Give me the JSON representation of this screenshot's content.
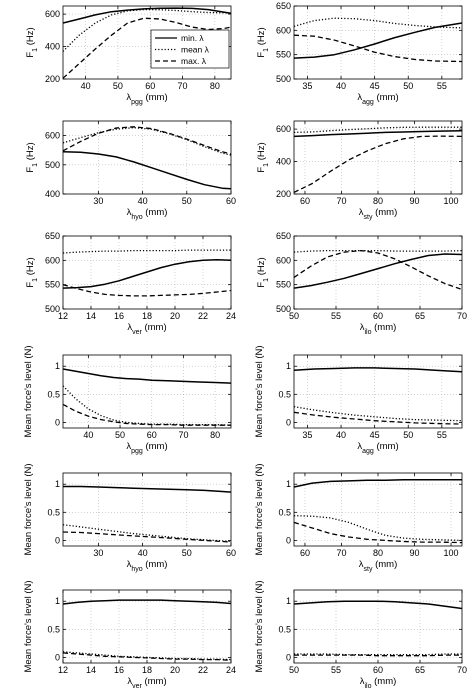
{
  "legend": [
    {
      "label": "min. λ",
      "style": "solid"
    },
    {
      "label": "mean λ",
      "style": "dotted"
    },
    {
      "label": "max. λ",
      "style": "dashed"
    }
  ],
  "chart_data": [
    {
      "type": "line",
      "xlabel": "λpgg (mm)",
      "ylabel": "F1 (Hz)",
      "xlim": [
        33,
        85
      ],
      "ylim": [
        200,
        650
      ],
      "xticks": [
        40,
        50,
        60,
        70,
        80
      ],
      "yticks": [
        200,
        400,
        600
      ],
      "grid": true,
      "legend": "top-right",
      "x": [
        33,
        38,
        43,
        48,
        53,
        58,
        63,
        68,
        73,
        78,
        83,
        85
      ],
      "series": [
        {
          "name": "min. λ",
          "values": [
            545,
            570,
            595,
            615,
            625,
            632,
            636,
            637,
            635,
            628,
            612,
            605
          ]
        },
        {
          "name": "mean λ",
          "values": [
            370,
            470,
            545,
            595,
            620,
            628,
            627,
            622,
            615,
            610,
            608,
            605
          ]
        },
        {
          "name": "max. λ",
          "values": [
            205,
            295,
            385,
            470,
            545,
            575,
            570,
            548,
            520,
            505,
            512,
            520
          ]
        }
      ]
    },
    {
      "type": "line",
      "xlabel": "λagg (mm)",
      "ylabel": "F1 (Hz)",
      "xlim": [
        33,
        58
      ],
      "ylim": [
        500,
        650
      ],
      "xticks": [
        35,
        40,
        45,
        50,
        55
      ],
      "yticks": [
        500,
        550,
        600,
        650
      ],
      "grid": true,
      "x": [
        33,
        36,
        39,
        42,
        45,
        48,
        51,
        54,
        58
      ],
      "series": [
        {
          "name": "min. λ",
          "values": [
            543,
            545,
            550,
            560,
            572,
            585,
            596,
            606,
            615
          ]
        },
        {
          "name": "mean λ",
          "values": [
            608,
            620,
            625,
            624,
            620,
            614,
            610,
            607,
            605
          ]
        },
        {
          "name": "max. λ",
          "values": [
            590,
            588,
            580,
            568,
            555,
            546,
            540,
            537,
            536
          ]
        }
      ]
    },
    {
      "type": "line",
      "xlabel": "λhyo (mm)",
      "ylabel": "F1 (Hz)",
      "xlim": [
        22,
        60
      ],
      "ylim": [
        400,
        650
      ],
      "xticks": [
        30,
        40,
        50,
        60
      ],
      "yticks": [
        400,
        500,
        600
      ],
      "grid": true,
      "x": [
        22,
        26,
        30,
        34,
        38,
        42,
        46,
        50,
        54,
        58,
        60
      ],
      "series": [
        {
          "name": "min. λ",
          "values": [
            545,
            543,
            537,
            527,
            510,
            490,
            470,
            450,
            432,
            420,
            418
          ]
        },
        {
          "name": "mean λ",
          "values": [
            575,
            593,
            610,
            622,
            627,
            622,
            606,
            586,
            562,
            540,
            533
          ]
        },
        {
          "name": "max. λ",
          "values": [
            548,
            580,
            608,
            626,
            630,
            624,
            608,
            588,
            566,
            545,
            537
          ]
        }
      ]
    },
    {
      "type": "line",
      "xlabel": "λsty (mm)",
      "ylabel": "F1 (Hz)",
      "xlim": [
        57,
        103
      ],
      "ylim": [
        200,
        650
      ],
      "xticks": [
        60,
        70,
        80,
        90,
        100
      ],
      "yticks": [
        200,
        400,
        600
      ],
      "grid": true,
      "x": [
        57,
        62,
        67,
        72,
        77,
        82,
        87,
        92,
        97,
        103
      ],
      "series": [
        {
          "name": "min. λ",
          "values": [
            555,
            560,
            566,
            570,
            575,
            580,
            582,
            585,
            588,
            590
          ]
        },
        {
          "name": "mean λ",
          "values": [
            580,
            583,
            590,
            597,
            602,
            608,
            611,
            612,
            612,
            612
          ]
        },
        {
          "name": "max. λ",
          "values": [
            210,
            265,
            340,
            410,
            465,
            510,
            540,
            555,
            557,
            555
          ]
        }
      ]
    },
    {
      "type": "line",
      "xlabel": "λver (mm)",
      "ylabel": "F1 (Hz)",
      "xlim": [
        12,
        24
      ],
      "ylim": [
        500,
        650
      ],
      "xticks": [
        12,
        14,
        16,
        18,
        20,
        22,
        24
      ],
      "yticks": [
        500,
        550,
        600,
        650
      ],
      "grid": true,
      "x": [
        12,
        13,
        14,
        15,
        16,
        17,
        18,
        19,
        20,
        21,
        22,
        23,
        24
      ],
      "series": [
        {
          "name": "min. λ",
          "values": [
            543,
            544,
            546,
            551,
            558,
            567,
            576,
            585,
            592,
            597,
            600,
            601,
            600
          ]
        },
        {
          "name": "mean λ",
          "values": [
            615,
            617,
            618,
            619,
            619,
            620,
            620,
            620,
            620,
            621,
            621,
            621,
            621
          ]
        },
        {
          "name": "max. λ",
          "values": [
            550,
            542,
            535,
            530,
            528,
            527,
            527,
            528,
            529,
            530,
            532,
            535,
            538
          ]
        }
      ]
    },
    {
      "type": "line",
      "xlabel": "λilo (mm)",
      "ylabel": "F1 (Hz)",
      "xlim": [
        50,
        70
      ],
      "ylim": [
        500,
        650
      ],
      "xticks": [
        50,
        55,
        60,
        65,
        70
      ],
      "yticks": [
        500,
        550,
        600,
        650
      ],
      "grid": true,
      "x": [
        50,
        52,
        54,
        56,
        58,
        60,
        62,
        64,
        66,
        68,
        70
      ],
      "series": [
        {
          "name": "min. λ",
          "values": [
            543,
            548,
            555,
            563,
            573,
            583,
            593,
            602,
            610,
            613,
            612
          ]
        },
        {
          "name": "mean λ",
          "values": [
            617,
            619,
            620,
            620,
            620,
            620,
            619,
            619,
            619,
            619,
            620
          ]
        },
        {
          "name": "max. λ",
          "values": [
            565,
            588,
            607,
            617,
            620,
            615,
            603,
            586,
            568,
            552,
            540
          ]
        }
      ]
    },
    {
      "type": "line",
      "xlabel": "λpgg (mm)",
      "ylabel": "Mean force's level (N)",
      "xlim": [
        32,
        85
      ],
      "ylim": [
        -0.1,
        1.2
      ],
      "xticks": [
        40,
        50,
        60,
        70,
        80
      ],
      "yticks": [
        0,
        0.5,
        1
      ],
      "grid": true,
      "x": [
        32,
        36,
        40,
        44,
        48,
        52,
        56,
        60,
        65,
        70,
        75,
        80,
        85
      ],
      "series": [
        {
          "name": "min. λ",
          "values": [
            0.95,
            0.91,
            0.87,
            0.83,
            0.8,
            0.78,
            0.77,
            0.75,
            0.74,
            0.73,
            0.72,
            0.71,
            0.7
          ]
        },
        {
          "name": "mean λ",
          "values": [
            0.65,
            0.42,
            0.24,
            0.12,
            0.04,
            0.0,
            -0.02,
            -0.03,
            -0.03,
            -0.04,
            -0.04,
            -0.04,
            -0.05
          ]
        },
        {
          "name": "max. λ",
          "values": [
            0.32,
            0.2,
            0.11,
            0.05,
            0.01,
            -0.02,
            -0.03,
            -0.04,
            -0.04,
            -0.05,
            -0.05,
            -0.05,
            -0.05
          ]
        }
      ]
    },
    {
      "type": "line",
      "xlabel": "λagg (mm)",
      "ylabel": "Mean force's level (N)",
      "xlim": [
        33,
        58
      ],
      "ylim": [
        -0.1,
        1.2
      ],
      "xticks": [
        35,
        40,
        45,
        50,
        55
      ],
      "yticks": [
        0,
        0.5,
        1
      ],
      "grid": true,
      "x": [
        33,
        36,
        39,
        42,
        45,
        48,
        51,
        54,
        58
      ],
      "series": [
        {
          "name": "min. λ",
          "values": [
            0.93,
            0.95,
            0.96,
            0.97,
            0.97,
            0.96,
            0.95,
            0.93,
            0.9
          ]
        },
        {
          "name": "mean λ",
          "values": [
            0.28,
            0.22,
            0.17,
            0.13,
            0.1,
            0.07,
            0.05,
            0.04,
            0.03
          ]
        },
        {
          "name": "max. λ",
          "values": [
            0.18,
            0.13,
            0.09,
            0.06,
            0.03,
            0.01,
            -0.01,
            -0.02,
            -0.03
          ]
        }
      ]
    },
    {
      "type": "line",
      "xlabel": "λhyo (mm)",
      "ylabel": "Mean force's level (N)",
      "xlim": [
        22,
        60
      ],
      "ylim": [
        -0.1,
        1.2
      ],
      "xticks": [
        30,
        40,
        50,
        60
      ],
      "yticks": [
        0,
        0.5,
        1
      ],
      "grid": true,
      "x": [
        22,
        26,
        30,
        34,
        38,
        42,
        46,
        50,
        54,
        58,
        60
      ],
      "series": [
        {
          "name": "min. λ",
          "values": [
            0.96,
            0.96,
            0.95,
            0.94,
            0.93,
            0.92,
            0.91,
            0.9,
            0.89,
            0.87,
            0.86
          ]
        },
        {
          "name": "mean λ",
          "values": [
            0.28,
            0.24,
            0.2,
            0.16,
            0.12,
            0.09,
            0.06,
            0.03,
            0.01,
            -0.01,
            -0.02
          ]
        },
        {
          "name": "max. λ",
          "values": [
            0.15,
            0.14,
            0.12,
            0.1,
            0.08,
            0.06,
            0.04,
            0.02,
            0.0,
            -0.02,
            -0.03
          ]
        }
      ]
    },
    {
      "type": "line",
      "xlabel": "λsty (mm)",
      "ylabel": "Mean force's level (N)",
      "xlim": [
        57,
        103
      ],
      "ylim": [
        -0.1,
        1.2
      ],
      "xticks": [
        60,
        70,
        80,
        90,
        100
      ],
      "yticks": [
        0,
        0.5,
        1
      ],
      "grid": true,
      "x": [
        57,
        62,
        67,
        72,
        77,
        82,
        87,
        92,
        97,
        103
      ],
      "series": [
        {
          "name": "min. λ",
          "values": [
            0.95,
            1.02,
            1.05,
            1.06,
            1.07,
            1.07,
            1.08,
            1.08,
            1.08,
            1.08
          ]
        },
        {
          "name": "mean λ",
          "values": [
            0.44,
            0.43,
            0.4,
            0.32,
            0.2,
            0.09,
            0.04,
            0.02,
            0.01,
            0.0
          ]
        },
        {
          "name": "max. λ",
          "values": [
            0.32,
            0.22,
            0.12,
            0.06,
            0.02,
            0.0,
            -0.02,
            -0.03,
            -0.03,
            -0.04
          ]
        }
      ]
    },
    {
      "type": "line",
      "xlabel": "λver (mm)",
      "ylabel": "Mean force's level (N)",
      "xlim": [
        12,
        24
      ],
      "ylim": [
        -0.1,
        1.2
      ],
      "xticks": [
        12,
        14,
        16,
        18,
        20,
        22,
        24
      ],
      "yticks": [
        0,
        0.5,
        1
      ],
      "grid": true,
      "x": [
        12,
        13,
        14,
        15,
        16,
        17,
        18,
        19,
        20,
        21,
        22,
        23,
        24
      ],
      "series": [
        {
          "name": "min. λ",
          "values": [
            0.95,
            0.98,
            1.0,
            1.01,
            1.02,
            1.02,
            1.02,
            1.02,
            1.01,
            1.0,
            0.99,
            0.98,
            0.96
          ]
        },
        {
          "name": "mean λ",
          "values": [
            0.1,
            0.08,
            0.06,
            0.04,
            0.02,
            0.01,
            0.0,
            -0.01,
            -0.02,
            -0.02,
            -0.03,
            -0.03,
            -0.04
          ]
        },
        {
          "name": "max. λ",
          "values": [
            0.08,
            0.06,
            0.04,
            0.02,
            0.01,
            0.0,
            -0.01,
            -0.02,
            -0.03,
            -0.03,
            -0.04,
            -0.04,
            -0.05
          ]
        }
      ]
    },
    {
      "type": "line",
      "xlabel": "λilo (mm)",
      "ylabel": "Mean force's level (N)",
      "xlim": [
        50,
        70
      ],
      "ylim": [
        -0.1,
        1.2
      ],
      "xticks": [
        50,
        55,
        60,
        65,
        70
      ],
      "yticks": [
        0,
        0.5,
        1
      ],
      "grid": true,
      "x": [
        50,
        52,
        54,
        56,
        58,
        60,
        62,
        64,
        66,
        68,
        70
      ],
      "series": [
        {
          "name": "min. λ",
          "values": [
            0.95,
            0.97,
            0.99,
            1.0,
            1.0,
            1.0,
            0.99,
            0.97,
            0.95,
            0.91,
            0.87
          ]
        },
        {
          "name": "mean λ",
          "values": [
            0.06,
            0.06,
            0.06,
            0.05,
            0.05,
            0.05,
            0.05,
            0.05,
            0.05,
            0.06,
            0.06
          ]
        },
        {
          "name": "max. λ",
          "values": [
            0.04,
            0.04,
            0.04,
            0.04,
            0.04,
            0.03,
            0.03,
            0.03,
            0.03,
            0.04,
            0.04
          ]
        }
      ]
    }
  ]
}
